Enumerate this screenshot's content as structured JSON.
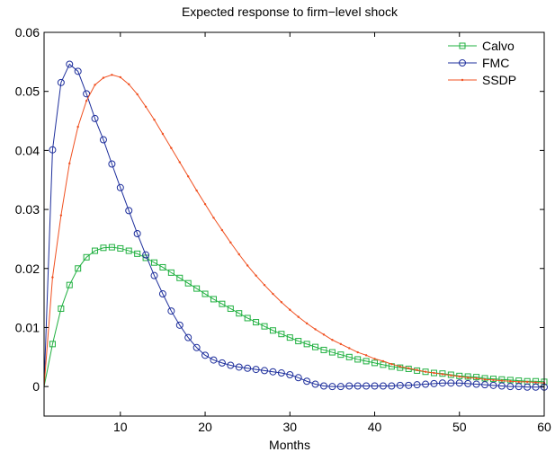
{
  "chart_data": {
    "type": "line",
    "title": "Expected response to firm−level shock",
    "xlabel": "Months",
    "ylabel": "",
    "xlim": [
      1,
      60
    ],
    "ylim": [
      -0.005,
      0.06
    ],
    "xticks": [
      10,
      20,
      30,
      40,
      50,
      60
    ],
    "yticks": [
      0,
      0.01,
      0.02,
      0.03,
      0.04,
      0.05,
      0.06
    ],
    "ytick_labels": [
      "0",
      "0.01",
      "0.02",
      "0.03",
      "0.04",
      "0.05",
      "0.06"
    ],
    "grid": false,
    "legend_position": "top-right",
    "x": [
      1,
      2,
      3,
      4,
      5,
      6,
      7,
      8,
      9,
      10,
      11,
      12,
      13,
      14,
      15,
      16,
      17,
      18,
      19,
      20,
      21,
      22,
      23,
      24,
      25,
      26,
      27,
      28,
      29,
      30,
      31,
      32,
      33,
      34,
      35,
      36,
      37,
      38,
      39,
      40,
      41,
      42,
      43,
      44,
      45,
      46,
      47,
      48,
      49,
      50,
      51,
      52,
      53,
      54,
      55,
      56,
      57,
      58,
      59,
      60
    ],
    "series": [
      {
        "name": "Calvo",
        "color": "#20b040",
        "marker": "square",
        "values": [
          0,
          0.0072,
          0.0132,
          0.0172,
          0.02,
          0.0219,
          0.023,
          0.0235,
          0.0236,
          0.0234,
          0.023,
          0.0225,
          0.0218,
          0.021,
          0.0202,
          0.0193,
          0.0184,
          0.0175,
          0.0166,
          0.0157,
          0.0148,
          0.014,
          0.0132,
          0.0124,
          0.0116,
          0.0109,
          0.0102,
          0.0095,
          0.0089,
          0.0083,
          0.0077,
          0.0072,
          0.0067,
          0.0062,
          0.0058,
          0.0054,
          0.005,
          0.0046,
          0.0043,
          0.004,
          0.0037,
          0.0034,
          0.0032,
          0.003,
          0.0027,
          0.0025,
          0.0023,
          0.0022,
          0.002,
          0.0018,
          0.0017,
          0.0016,
          0.0014,
          0.0013,
          0.0012,
          0.0011,
          0.001,
          0.0009,
          0.0009,
          0.0008
        ]
      },
      {
        "name": "FMC",
        "color": "#1e2f9c",
        "marker": "circle",
        "values": [
          0,
          0.0401,
          0.0515,
          0.0546,
          0.0534,
          0.0496,
          0.0454,
          0.0418,
          0.0377,
          0.0337,
          0.0298,
          0.0259,
          0.0223,
          0.0188,
          0.0157,
          0.0128,
          0.0104,
          0.0083,
          0.0066,
          0.0053,
          0.0045,
          0.004,
          0.0036,
          0.0033,
          0.0031,
          0.0029,
          0.0027,
          0.0025,
          0.0023,
          0.002,
          0.0015,
          0.0009,
          0.0004,
          0.0001,
          0.0,
          0.0,
          0.0001,
          0.0001,
          0.0001,
          0.0001,
          0.0001,
          0.0001,
          0.0002,
          0.0002,
          0.0003,
          0.0004,
          0.0005,
          0.0006,
          0.0006,
          0.0006,
          0.0005,
          0.0004,
          0.0003,
          0.0002,
          0.0001,
          0.0,
          0.0,
          -0.0001,
          -0.0001,
          -0.0001
        ]
      },
      {
        "name": "SSDP",
        "color": "#f05020",
        "marker": "dot",
        "values": [
          0,
          0.0185,
          0.029,
          0.0378,
          0.044,
          0.0484,
          0.0511,
          0.0523,
          0.0528,
          0.0524,
          0.0512,
          0.0495,
          0.0474,
          0.0452,
          0.0428,
          0.0404,
          0.038,
          0.0356,
          0.0332,
          0.0309,
          0.0286,
          0.0265,
          0.0244,
          0.0224,
          0.0205,
          0.0188,
          0.0172,
          0.0157,
          0.0143,
          0.013,
          0.0118,
          0.0107,
          0.0097,
          0.0088,
          0.0079,
          0.0072,
          0.0065,
          0.0058,
          0.0053,
          0.0047,
          0.0043,
          0.0038,
          0.0034,
          0.0031,
          0.0028,
          0.0025,
          0.0023,
          0.0021,
          0.0019,
          0.0017,
          0.0015,
          0.0014,
          0.0012,
          0.0011,
          0.001,
          0.0009,
          0.0008,
          0.0008,
          0.0007,
          0.0006
        ]
      }
    ]
  }
}
